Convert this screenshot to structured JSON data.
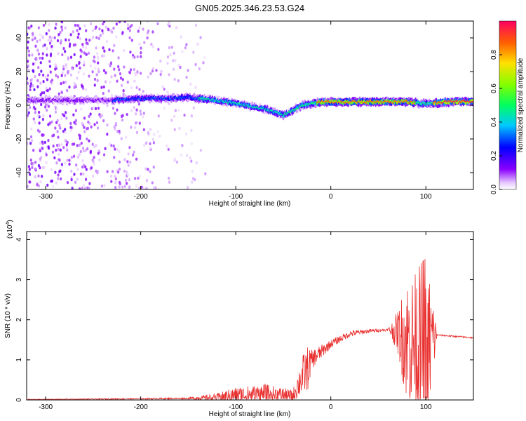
{
  "title": "GN05.2025.346.23.53.G24",
  "chart_data": [
    {
      "type": "heatmap",
      "name": "spectrogram",
      "xlabel": "Height of straight line (km)",
      "ylabel": "Frequency (Hz)",
      "xlim": [
        -320,
        150
      ],
      "ylim": [
        -50,
        50
      ],
      "xticks": [
        -300,
        -200,
        -100,
        0,
        100
      ],
      "yticks": [
        -40,
        -20,
        0,
        20,
        40
      ],
      "ridge": {
        "x": [
          -230,
          -200,
          -170,
          -150,
          -140,
          -120,
          -100,
          -80,
          -70,
          -60,
          -50,
          -40,
          -30,
          -20,
          -10,
          0,
          20,
          40,
          60,
          80,
          95,
          105,
          120,
          150
        ],
        "y": [
          3,
          4,
          4,
          5,
          4,
          3,
          1,
          -1,
          -2,
          -4,
          -6,
          -3,
          0,
          1,
          2,
          2,
          2,
          2,
          2,
          2,
          1,
          1,
          2,
          2
        ]
      },
      "colorbar": {
        "label": "Normalized spectral amplitude",
        "range": [
          0,
          1
        ],
        "ticks": [
          0.0,
          0.2,
          0.4,
          0.6,
          0.8
        ],
        "tick_labels": [
          "0.0",
          "0.2",
          "0.4",
          "0.6",
          "0.8"
        ]
      }
    },
    {
      "type": "line",
      "name": "snr",
      "xlabel": "Height of straight line (km)",
      "ylabel": "SNR (10 * v/v)",
      "scale_label": "(x10",
      "scale_exponent": "4",
      "scale_close": ")",
      "xlim": [
        -320,
        150
      ],
      "ylim": [
        0,
        4.2
      ],
      "xticks": [
        -300,
        -200,
        -100,
        0,
        100
      ],
      "yticks": [
        0,
        1,
        2,
        3,
        4
      ],
      "color": "#e8302f",
      "envelope": {
        "x": [
          -320,
          -150,
          -120,
          -100,
          -70,
          -40,
          -30,
          -25,
          -20,
          0,
          20,
          40,
          60,
          70,
          80,
          90,
          100,
          108,
          112,
          150
        ],
        "base": [
          0.01,
          0.04,
          0.06,
          0.12,
          0.15,
          0.1,
          0.6,
          0.75,
          1.0,
          1.4,
          1.65,
          1.72,
          1.75,
          1.7,
          1.5,
          1.4,
          1.3,
          1.55,
          1.62,
          1.55
        ],
        "noise": [
          0.01,
          0.02,
          0.1,
          0.2,
          0.25,
          0.15,
          0.5,
          0.6,
          0.25,
          0.1,
          0.08,
          0.05,
          0.03,
          0.5,
          1.6,
          1.8,
          2.5,
          1.0,
          0.02,
          0.02
        ]
      }
    }
  ]
}
